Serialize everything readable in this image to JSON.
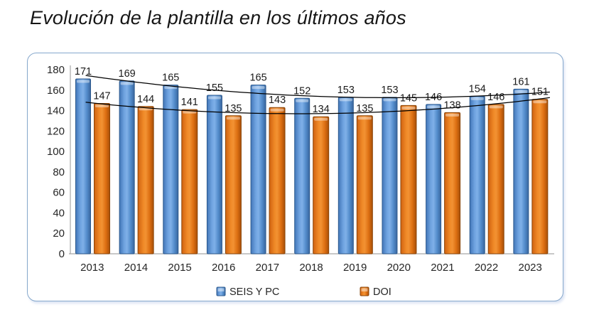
{
  "page": {
    "title": "Evolución de la plantilla en los últimos años"
  },
  "chart_data": {
    "type": "bar",
    "title": "Evolución de la plantilla en los últimos años",
    "categories": [
      "2013",
      "2014",
      "2015",
      "2016",
      "2017",
      "2018",
      "2019",
      "2020",
      "2021",
      "2022",
      "2023"
    ],
    "series": [
      {
        "name": "SEIS Y PC",
        "values": [
          171,
          169,
          165,
          155,
          165,
          152,
          153,
          153,
          146,
          154,
          161
        ],
        "colors": {
          "main": "#5390D9",
          "light": "#8FC0F0",
          "dark": "#3A6EA8",
          "border": "#2D5A8E"
        }
      },
      {
        "name": "DOI",
        "values": [
          147,
          144,
          141,
          135,
          143,
          134,
          135,
          145,
          138,
          146,
          151
        ],
        "colors": {
          "main": "#EE7D1A",
          "light": "#F7A24C",
          "dark": "#C05A0E",
          "border": "#8A4509"
        }
      }
    ],
    "y_axis": {
      "min": 0,
      "max": 180,
      "step": 20
    },
    "x_axis_title": "",
    "y_axis_title": "",
    "data_labels": true,
    "gridlines": false,
    "legend_position": "bottom",
    "trendlines": [
      {
        "series": "SEIS Y PC",
        "type": "polynomial-2",
        "color": "#000000"
      },
      {
        "series": "DOI",
        "type": "polynomial-2",
        "color": "#000000"
      }
    ],
    "axis_color": "#A6A6A6",
    "label_color": "#1A1A1A",
    "frame_border_color": "#86A8CC"
  }
}
